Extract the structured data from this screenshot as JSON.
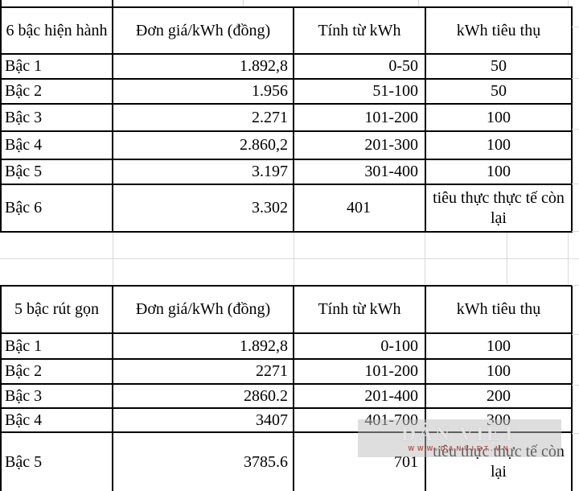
{
  "watermark": {
    "title": "DÂN VIỆT",
    "subtitle": "WWW.DANVIET.VN"
  },
  "tables": [
    {
      "name": "current-6-tier-tariff",
      "headers": [
        "6 bậc hiện hành",
        "Đơn giá/kWh (đồng)",
        "Tính từ kWh",
        "kWh tiêu thụ"
      ],
      "rows": [
        [
          "Bậc 1",
          "1.892,8",
          "0-50",
          "50"
        ],
        [
          "Bậc 2",
          "1.956",
          "51-100",
          "50"
        ],
        [
          "Bậc 3",
          "2.271",
          "101-200",
          "100"
        ],
        [
          "Bậc 4",
          "2.860,2",
          "201-300",
          "100"
        ],
        [
          "Bậc 5",
          "3.197",
          "301-400",
          "100"
        ],
        [
          "Bậc 6",
          "3.302",
          "401",
          "tiêu thực thực tế còn lại"
        ]
      ]
    },
    {
      "name": "proposed-5-tier-tariff",
      "headers": [
        "5 bậc rút gọn",
        "Đơn giá/kWh (đồng)",
        "Tính từ kWh",
        "kWh tiêu thụ"
      ],
      "rows": [
        [
          "Bậc 1",
          "1.892,8",
          "0-100",
          "100"
        ],
        [
          "Bậc 2",
          "2271",
          "101-200",
          "100"
        ],
        [
          "Bậc 3",
          "2860.2",
          "201-400",
          "200"
        ],
        [
          "Bậc 4",
          "3407",
          "401-700",
          "300"
        ],
        [
          "Bậc 5",
          "3785.6",
          "701",
          "tiêu thực thực tế còn lại"
        ]
      ]
    }
  ],
  "grid": {
    "top_strip_dark_x": [
      0,
      139
    ],
    "top_strip_light_x": [
      302,
      520,
      706
    ],
    "gap_vertical_x": [
      140,
      365,
      528,
      630,
      706
    ],
    "gap_horizontal_y": [
      321
    ],
    "right_strip_y": [
      33,
      97,
      160,
      228,
      287,
      321,
      354,
      415,
      478,
      538
    ]
  }
}
